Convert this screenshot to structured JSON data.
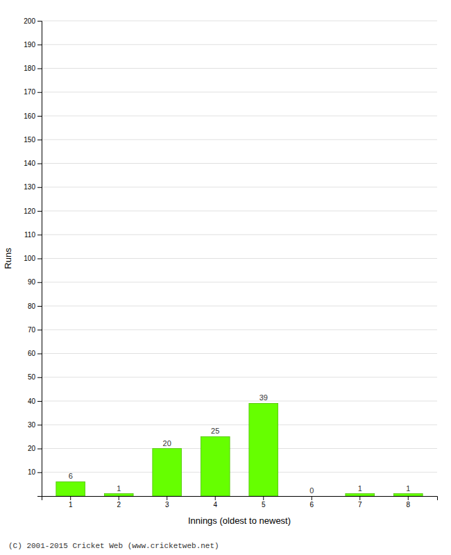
{
  "chart_data": {
    "type": "bar",
    "xlabel": "Innings (oldest to newest)",
    "ylabel": "Runs",
    "categories": [
      "1",
      "2",
      "3",
      "4",
      "5",
      "6",
      "7",
      "8"
    ],
    "values": [
      6,
      1,
      20,
      25,
      39,
      0,
      1,
      1
    ],
    "color": "#66ff00",
    "ylim": [
      0,
      200
    ],
    "yticks": [
      10,
      20,
      30,
      40,
      50,
      60,
      70,
      80,
      90,
      100,
      110,
      120,
      130,
      140,
      150,
      160,
      170,
      180,
      190,
      200
    ],
    "grid": true,
    "data_labels": true,
    "annotations": [
      "(C) 2001-2015 Cricket Web (www.cricketweb.net)"
    ]
  }
}
